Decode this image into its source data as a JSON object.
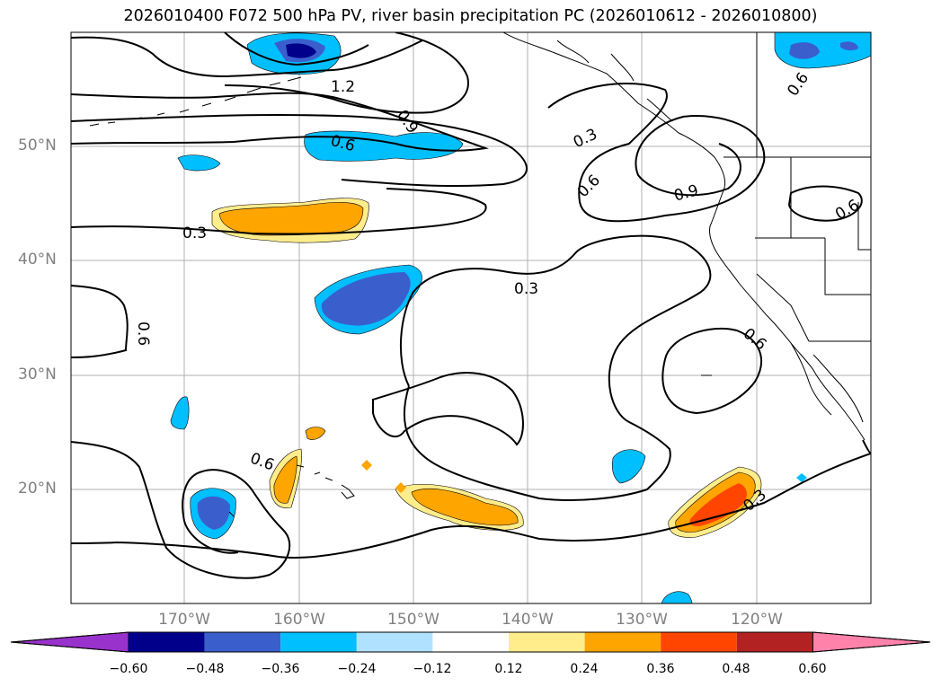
{
  "title": "2026010400 F072 500 hPa PV, river basin precipitation PC (2026010612 - 2026010800)",
  "lat_labels": [
    "50°N",
    "40°N",
    "30°N",
    "20°N"
  ],
  "lon_labels": [
    "170°W",
    "160°W",
    "150°W",
    "140°W",
    "130°W",
    "120°W"
  ],
  "colorbar": {
    "colors": [
      "#9932cc",
      "#00008b",
      "#3a5fcd",
      "#00bfff",
      "#b0e2ff",
      "#ffffff",
      "#ffec8b",
      "#ffa500",
      "#ff4500",
      "#b22222",
      "#ff82ab"
    ],
    "ticks": [
      "−0.60",
      "−0.48",
      "−0.36",
      "−0.24",
      "−0.12",
      "0.12",
      "0.24",
      "0.36",
      "0.48",
      "0.60"
    ]
  },
  "contour_labels": [
    "1.2",
    "0.9",
    "0.6",
    "0.3",
    "0.3",
    "0.6",
    "0.9",
    "0.3",
    "0.6",
    "0.6",
    "0.6",
    "0.6",
    "0.3",
    "0.6"
  ]
}
